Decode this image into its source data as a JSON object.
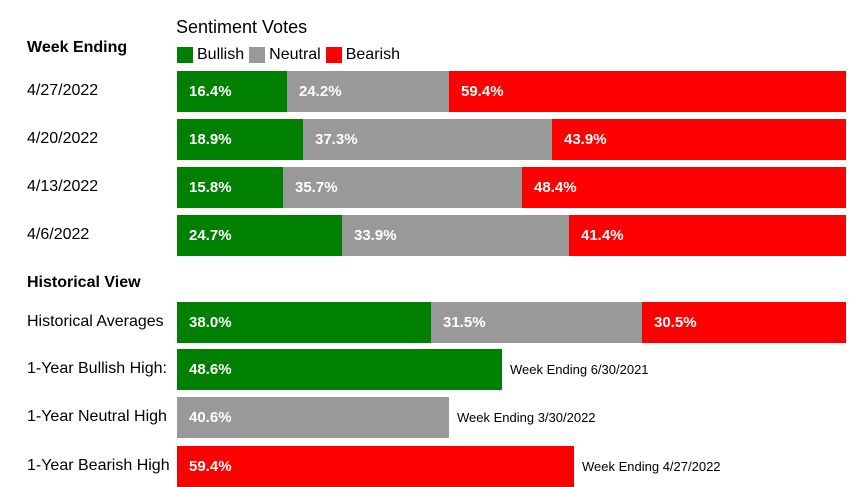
{
  "colors": {
    "bullish": "#008000",
    "neutral": "#999999",
    "bearish": "#ff0000"
  },
  "legend": {
    "title": "Sentiment Votes",
    "items": [
      {
        "label": "Bullish",
        "color": "#008000"
      },
      {
        "label": "Neutral",
        "color": "#999999"
      },
      {
        "label": "Bearish",
        "color": "#ff0000"
      }
    ]
  },
  "headers": {
    "week_ending": "Week Ending",
    "historical": "Historical View"
  },
  "chart_data": {
    "type": "bar",
    "stacked": true,
    "orientation": "horizontal",
    "title": "Sentiment Votes",
    "unit": "%",
    "series_names": [
      "Bullish",
      "Neutral",
      "Bearish"
    ],
    "weekly": [
      {
        "label": "4/27/2022",
        "values": [
          16.4,
          24.2,
          59.4
        ],
        "texts": [
          "16.4%",
          "24.2%",
          "59.4%"
        ]
      },
      {
        "label": "4/20/2022",
        "values": [
          18.9,
          37.3,
          43.9
        ],
        "texts": [
          "18.9%",
          "37.3%",
          "43.9%"
        ]
      },
      {
        "label": "4/13/2022",
        "values": [
          15.8,
          35.7,
          48.4
        ],
        "texts": [
          "15.8%",
          "35.7%",
          "48.4%"
        ]
      },
      {
        "label": "4/6/2022",
        "values": [
          24.7,
          33.9,
          41.4
        ],
        "texts": [
          "24.7%",
          "33.9%",
          "41.4%"
        ]
      }
    ],
    "historical_averages": {
      "label": "Historical Averages",
      "values": [
        38.0,
        31.5,
        30.5
      ],
      "texts": [
        "38.0%",
        "31.5%",
        "30.5%"
      ]
    },
    "highs": [
      {
        "label": "1-Year Bullish High:",
        "value": 48.6,
        "text": "48.6%",
        "color": "#008000",
        "note": "Week Ending 6/30/2021"
      },
      {
        "label": "1-Year Neutral High",
        "value": 40.6,
        "text": "40.6%",
        "color": "#999999",
        "note": "Week Ending 3/30/2022"
      },
      {
        "label": "1-Year Bearish High",
        "value": 59.4,
        "text": "59.4%",
        "color": "#ff0000",
        "note": "Week Ending 4/27/2022"
      }
    ]
  }
}
